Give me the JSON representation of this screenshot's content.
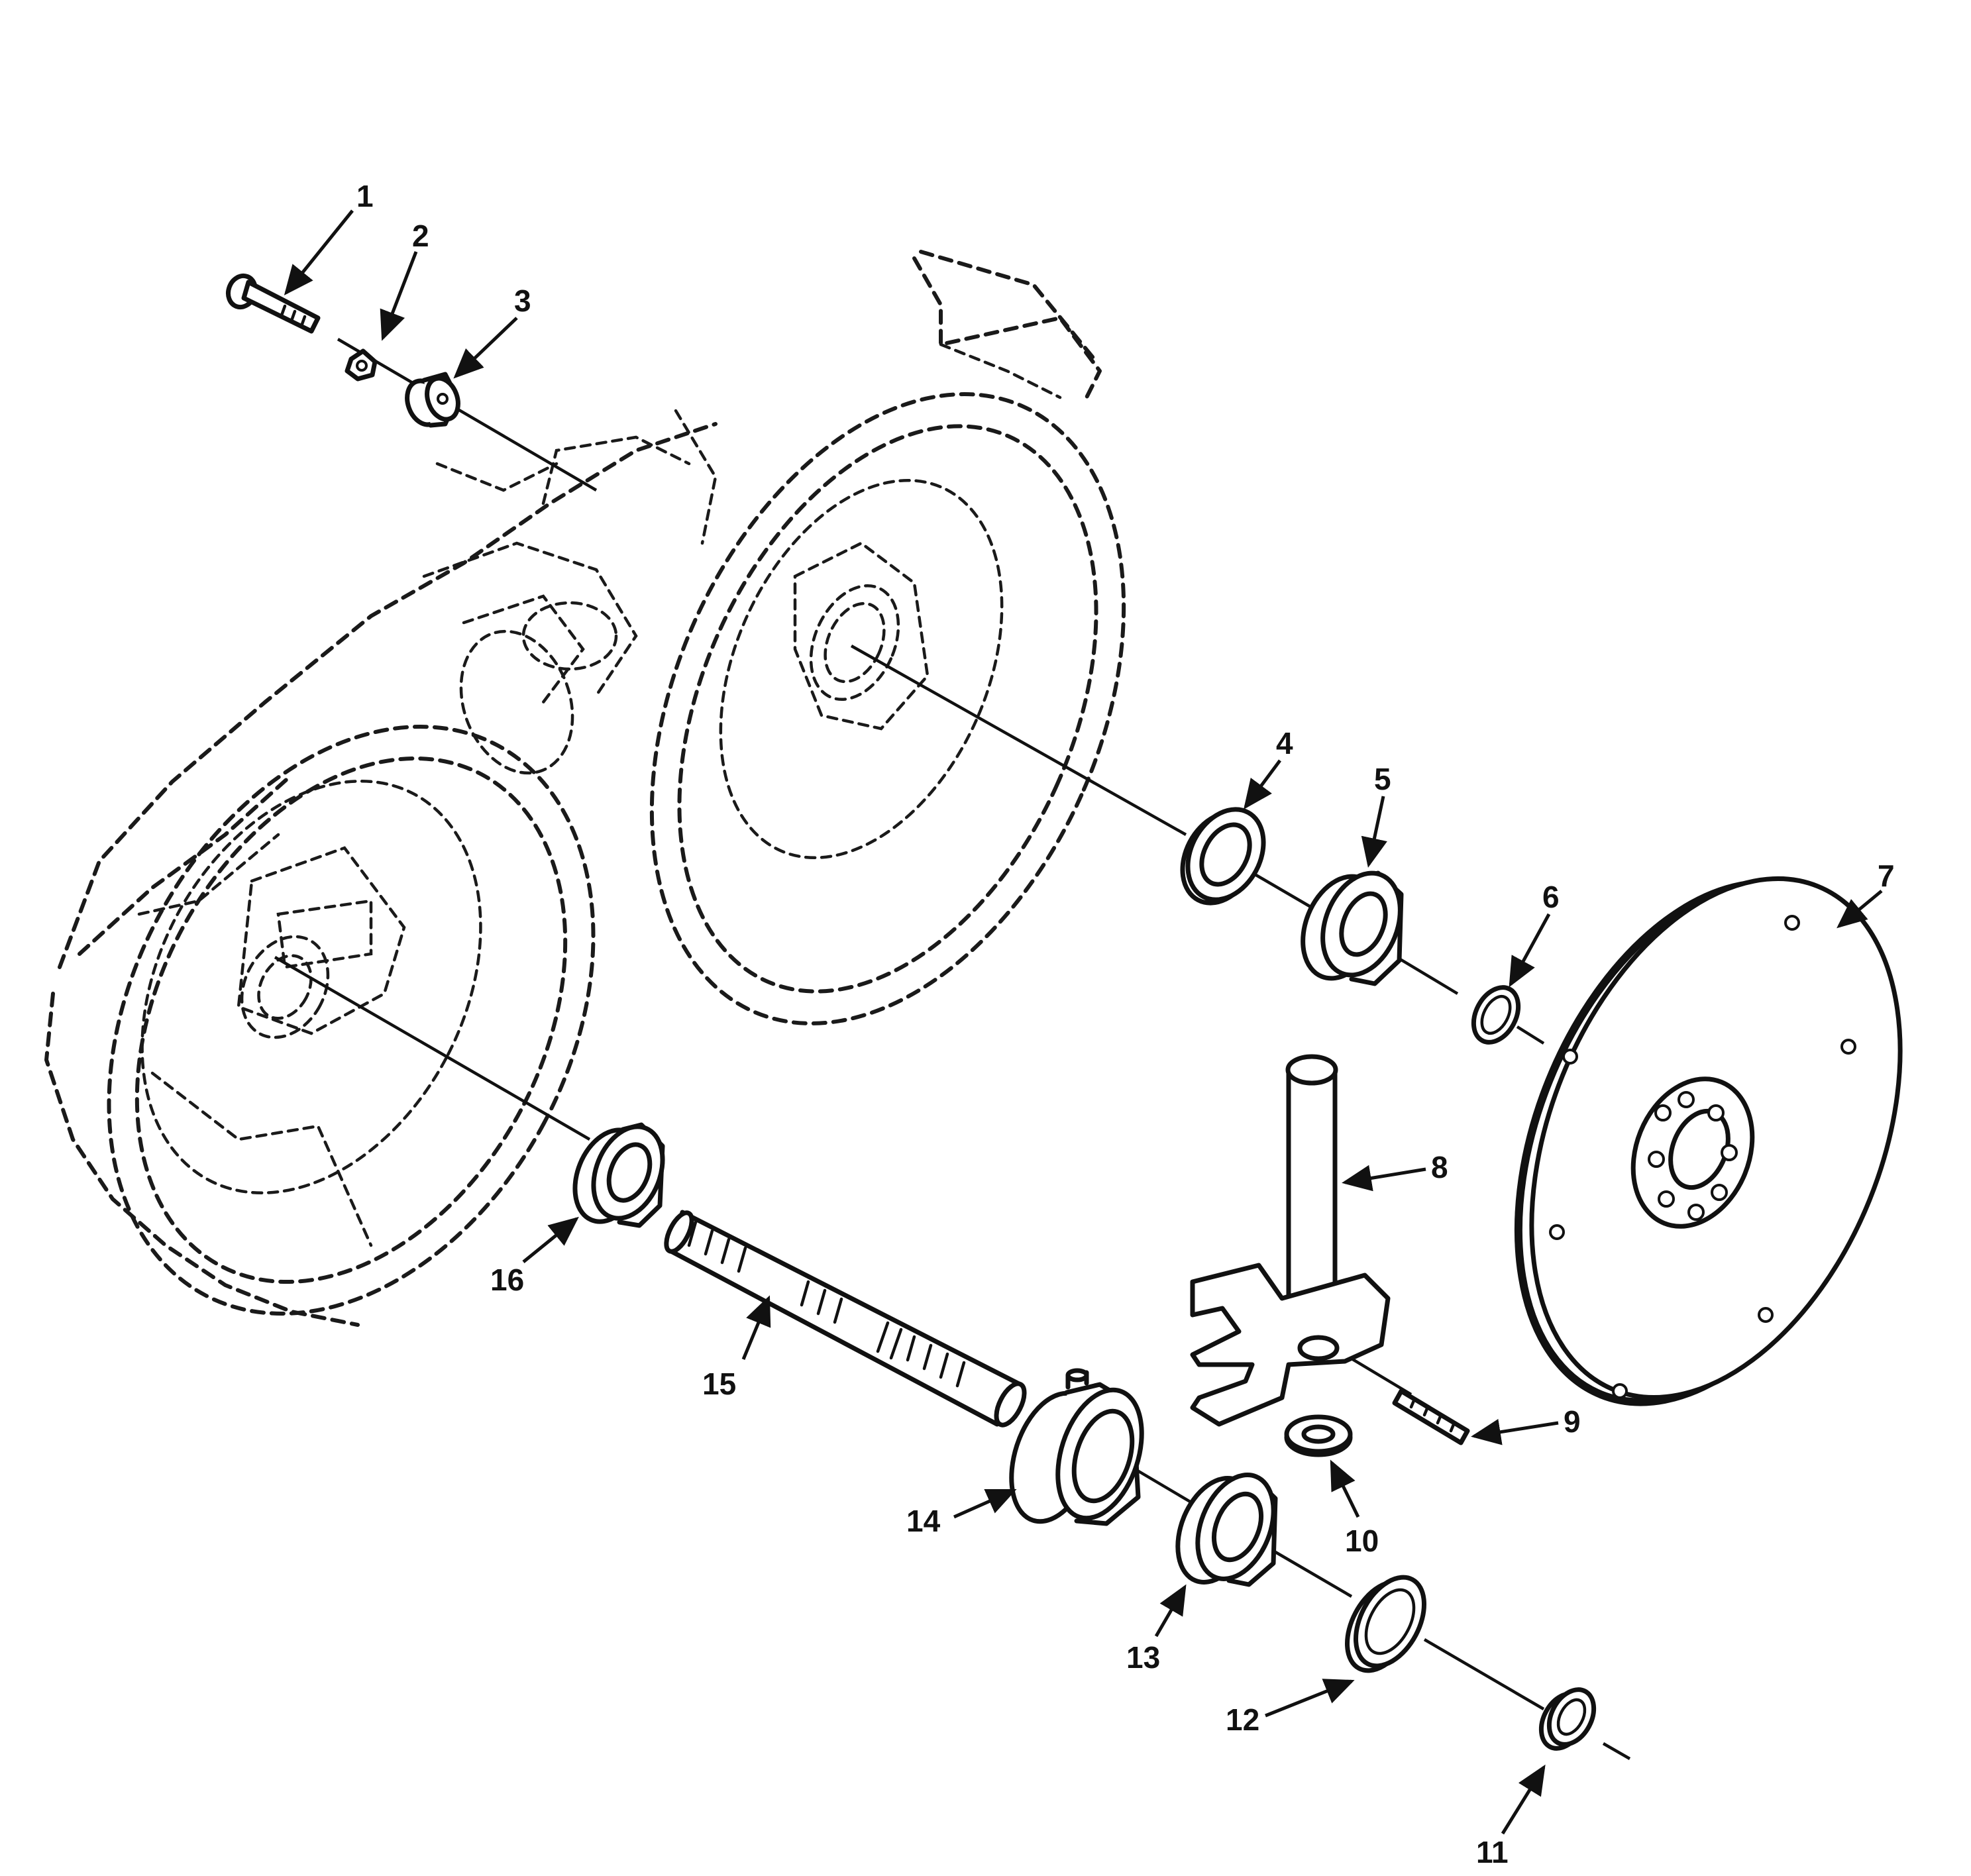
{
  "figure": {
    "callouts": [
      "1",
      "2",
      "3",
      "4",
      "5",
      "6",
      "7",
      "8",
      "9",
      "10",
      "11",
      "12",
      "13",
      "14",
      "15",
      "16"
    ]
  },
  "parts": {
    "housing": "phantom-outline",
    "item_1": "bolt",
    "item_2": "lock-washer",
    "item_3": "bushing",
    "item_4": "shim-ring",
    "item_5": "seal",
    "item_6": "retaining-ring",
    "item_7": "flex-plate",
    "item_8": "shaft-with-fork",
    "item_9": "pin",
    "item_10": "washer",
    "item_11": "snap-ring",
    "item_12": "ring",
    "item_13": "bearing",
    "item_14": "bearing-housing",
    "item_15": "splined-shaft",
    "item_16": "seal"
  }
}
